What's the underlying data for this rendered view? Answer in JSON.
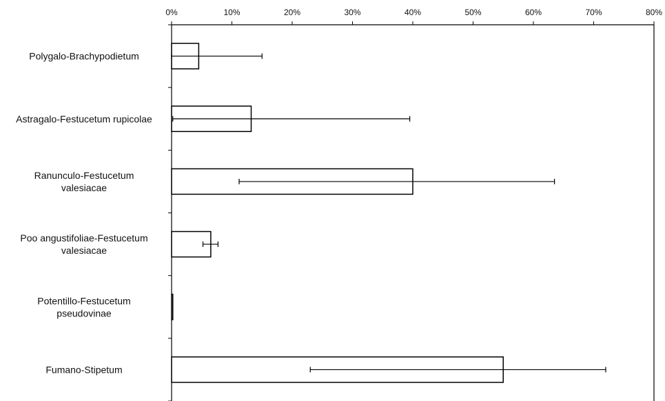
{
  "chart_data": {
    "type": "bar",
    "orientation": "horizontal",
    "title": "",
    "xlabel": "",
    "ylabel": "",
    "xlim": [
      0,
      80
    ],
    "x_tick_labels": [
      "0%",
      "10%",
      "20%",
      "30%",
      "40%",
      "50%",
      "60%",
      "70%",
      "80%"
    ],
    "x_tick_values": [
      0,
      10,
      20,
      30,
      40,
      50,
      60,
      70,
      80
    ],
    "x_axis_position": "top",
    "grid": false,
    "legend": "none",
    "categories": [
      [
        "Polygalo-Brachypodietum"
      ],
      [
        "Astragalo-Festucetum rupicolae"
      ],
      [
        "Ranunculo-Festucetum",
        "valesiacae"
      ],
      [
        "Poo angustifoliae-Festucetum",
        "valesiacae"
      ],
      [
        "Potentillo-Festucetum",
        "pseudovinae"
      ],
      [
        "Fumano-Stipetum"
      ]
    ],
    "values": [
      4.5,
      13.2,
      40.0,
      6.5,
      0.2,
      55.0
    ],
    "error_low": [
      0.0,
      0.2,
      11.2,
      5.2,
      0.0,
      23.0
    ],
    "error_high": [
      15.0,
      39.5,
      63.5,
      7.7,
      0.0,
      72.0
    ],
    "bar_fill": "#ffffff",
    "bar_stroke": "#000000"
  }
}
